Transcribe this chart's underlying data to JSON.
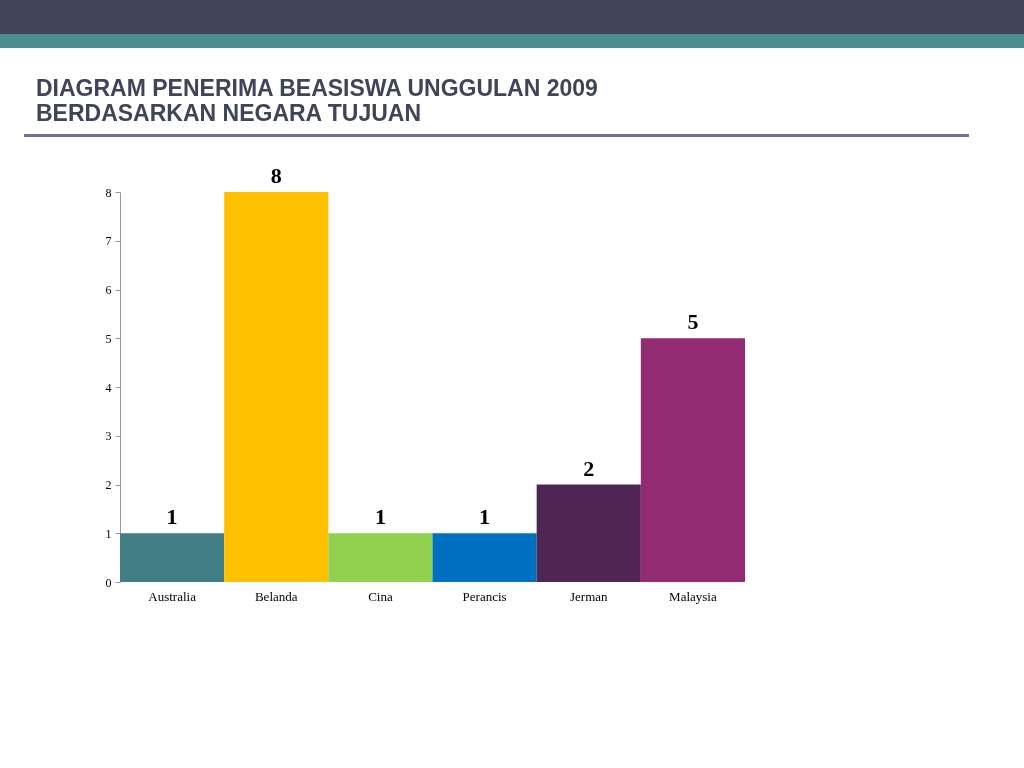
{
  "chart_data": {
    "type": "bar",
    "title": "DIAGRAM PENERIMA BEASISWA UNGGULAN 2009 BERDASARKAN NEGARA TUJUAN",
    "categories": [
      "Australia",
      "Belanda",
      "Cina",
      "Perancis",
      "Jerman",
      "Malaysia"
    ],
    "values": [
      1,
      8,
      1,
      1,
      2,
      5
    ],
    "colors": [
      "#417d84",
      "#ffc000",
      "#92d050",
      "#0070c0",
      "#4f2554",
      "#922b72"
    ],
    "ylim": [
      0,
      8
    ],
    "yticks": [
      0,
      1,
      2,
      3,
      4,
      5,
      6,
      7,
      8
    ],
    "grid": false,
    "data_labels": true
  }
}
